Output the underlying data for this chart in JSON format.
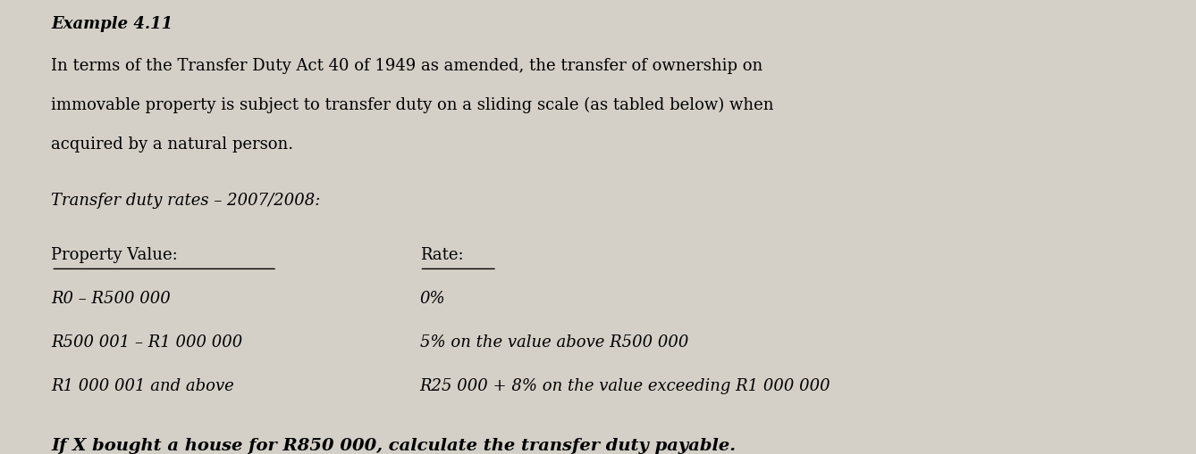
{
  "background_color": "#d4d0c8",
  "box_color": "#e8e4dc",
  "title": "Example 4.11",
  "intro_lines": [
    "In terms of the Transfer Duty Act 40 of 1949 as amended, the transfer of ownership on",
    "immovable property is subject to transfer duty on a sliding scale (as tabled below) when",
    "acquired by a natural person."
  ],
  "subtitle": "Transfer duty rates – 2007/2008:",
  "col1_header": "Property Value:",
  "col2_header": "Rate:",
  "table_rows": [
    [
      "R0 – R500 000",
      "0%"
    ],
    [
      "R500 001 – R1 000 000",
      "5% on the value above R500 000"
    ],
    [
      "R1 000 001 and above",
      "R25 000 + 8% on the value exceeding R1 000 000"
    ]
  ],
  "question": "If X bought a house for R850 000, calculate the transfer duty payable.",
  "title_fontsize": 13,
  "intro_fontsize": 13,
  "subtitle_fontsize": 13,
  "table_fontsize": 13,
  "question_fontsize": 14
}
